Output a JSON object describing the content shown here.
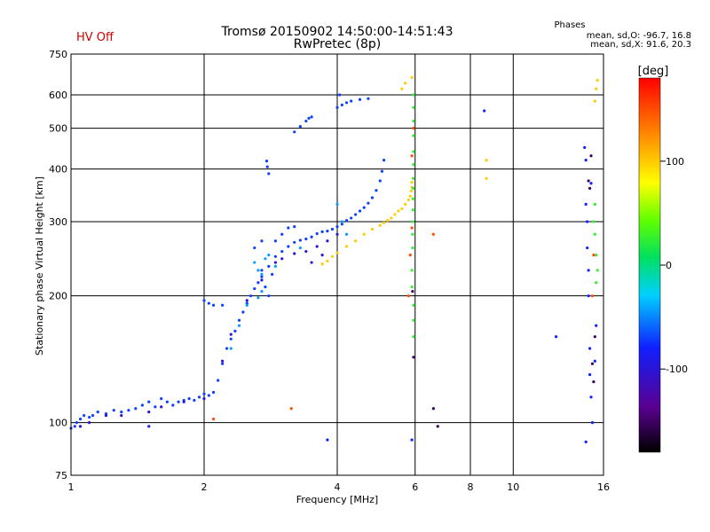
{
  "status_text": "HV Off",
  "status_color": "#cc0000",
  "chart_data": {
    "type": "scatter",
    "title": "Tromsø 20150902 14:50:00-14:51:43",
    "subtitle": "RwPretec (8p)",
    "xlabel": "Frequency [MHz]",
    "ylabel": "Stationary phase Virtual Height [km]",
    "x_scale": "log",
    "y_scale": "log",
    "xlim": [
      1,
      16
    ],
    "ylim": [
      75,
      750
    ],
    "x_ticks": [
      1,
      2,
      4,
      6,
      8,
      10,
      16
    ],
    "y_ticks": [
      75,
      100,
      200,
      300,
      400,
      500,
      600,
      750
    ],
    "grid": true,
    "phase_box": {
      "title": "Phases",
      "line_o": "mean, sd,O: -96.7, 16.8",
      "line_x": "mean, sd,X:  91.6, 20.3"
    },
    "colorbar": {
      "label": "[deg]",
      "range": [
        -180,
        180
      ],
      "ticks": [
        100,
        0,
        -100
      ]
    },
    "series": [
      {
        "phase_deg": -97,
        "points": [
          [
            1.0,
            97
          ],
          [
            1.02,
            98
          ],
          [
            1.03,
            100
          ],
          [
            1.05,
            102
          ],
          [
            1.07,
            104
          ],
          [
            1.1,
            103
          ],
          [
            1.12,
            104
          ],
          [
            1.15,
            106
          ],
          [
            1.2,
            105
          ],
          [
            1.25,
            107
          ],
          [
            1.3,
            106
          ],
          [
            1.35,
            107
          ],
          [
            1.4,
            108
          ],
          [
            1.45,
            110
          ],
          [
            1.5,
            112
          ],
          [
            1.55,
            109
          ],
          [
            1.6,
            114
          ],
          [
            1.65,
            112
          ],
          [
            1.7,
            110
          ],
          [
            1.75,
            112
          ],
          [
            1.8,
            113
          ],
          [
            1.85,
            114
          ],
          [
            1.9,
            113
          ],
          [
            1.95,
            115
          ],
          [
            2.0,
            117
          ],
          [
            2.05,
            116
          ],
          [
            2.1,
            118
          ],
          [
            2.15,
            126
          ],
          [
            2.2,
            138
          ],
          [
            2.25,
            150
          ],
          [
            2.3,
            158
          ],
          [
            2.35,
            165
          ],
          [
            2.4,
            175
          ],
          [
            2.45,
            183
          ],
          [
            2.5,
            192
          ],
          [
            2.55,
            200
          ],
          [
            2.6,
            208
          ],
          [
            2.65,
            215
          ],
          [
            2.7,
            222
          ],
          [
            2.8,
            235
          ],
          [
            2.9,
            248
          ],
          [
            3.0,
            255
          ],
          [
            3.1,
            262
          ],
          [
            3.2,
            268
          ],
          [
            3.3,
            271
          ],
          [
            3.4,
            273
          ],
          [
            3.5,
            276
          ],
          [
            3.6,
            281
          ],
          [
            3.7,
            284
          ],
          [
            3.8,
            285
          ],
          [
            3.9,
            288
          ],
          [
            4.0,
            292
          ],
          [
            4.1,
            296
          ],
          [
            4.2,
            302
          ],
          [
            4.3,
            306
          ],
          [
            4.4,
            312
          ],
          [
            4.5,
            318
          ],
          [
            4.6,
            324
          ],
          [
            4.7,
            332
          ],
          [
            4.8,
            342
          ],
          [
            4.9,
            356
          ],
          [
            5.0,
            375
          ],
          [
            5.05,
            395
          ],
          [
            5.1,
            420
          ],
          [
            2.0,
            195
          ],
          [
            2.05,
            192
          ],
          [
            2.1,
            190
          ],
          [
            2.2,
            190
          ],
          [
            2.8,
            390
          ],
          [
            2.78,
            405
          ],
          [
            2.77,
            418
          ],
          [
            3.2,
            490
          ],
          [
            3.3,
            505
          ],
          [
            3.4,
            520
          ],
          [
            3.45,
            528
          ],
          [
            3.5,
            532
          ],
          [
            4.0,
            560
          ],
          [
            4.1,
            568
          ],
          [
            4.2,
            575
          ],
          [
            4.3,
            580
          ],
          [
            4.5,
            585
          ],
          [
            4.7,
            588
          ],
          [
            4.05,
            600
          ],
          [
            2.7,
            230
          ],
          [
            2.75,
            210
          ],
          [
            2.8,
            200
          ],
          [
            2.85,
            225
          ],
          [
            2.9,
            270
          ],
          [
            3.0,
            280
          ],
          [
            3.1,
            290
          ],
          [
            3.2,
            292
          ],
          [
            2.6,
            260
          ],
          [
            2.7,
            270
          ]
        ]
      },
      {
        "phase_deg": -125,
        "points": [
          [
            1.05,
            98
          ],
          [
            1.1,
            100
          ],
          [
            1.2,
            104
          ],
          [
            1.3,
            104
          ],
          [
            1.5,
            106
          ],
          [
            1.6,
            109
          ],
          [
            1.8,
            112
          ],
          [
            2.0,
            114
          ],
          [
            2.2,
            140
          ],
          [
            2.3,
            162
          ],
          [
            2.5,
            195
          ],
          [
            2.7,
            218
          ],
          [
            2.9,
            240
          ],
          [
            3.0,
            245
          ],
          [
            3.2,
            252
          ],
          [
            3.4,
            255
          ],
          [
            3.6,
            262
          ],
          [
            3.8,
            270
          ],
          [
            4.0,
            280
          ],
          [
            3.5,
            240
          ],
          [
            3.7,
            250
          ]
        ]
      },
      {
        "phase_deg": -60,
        "points": [
          [
            2.6,
            240
          ],
          [
            2.65,
            230
          ],
          [
            2.7,
            225
          ],
          [
            2.75,
            245
          ],
          [
            2.8,
            250
          ],
          [
            2.7,
            205
          ],
          [
            2.65,
            198
          ],
          [
            2.9,
            235
          ],
          [
            2.5,
            190
          ],
          [
            2.4,
            170
          ],
          [
            2.3,
            150
          ],
          [
            4.1,
            300
          ],
          [
            4.2,
            280
          ],
          [
            4.0,
            330
          ],
          [
            3.3,
            260
          ]
        ]
      },
      {
        "phase_deg": 100,
        "points": [
          [
            3.7,
            238
          ],
          [
            3.8,
            242
          ],
          [
            3.9,
            248
          ],
          [
            4.0,
            253
          ],
          [
            4.2,
            262
          ],
          [
            4.4,
            270
          ],
          [
            4.6,
            280
          ],
          [
            4.8,
            288
          ],
          [
            5.0,
            294
          ],
          [
            5.1,
            298
          ],
          [
            5.2,
            302
          ],
          [
            5.3,
            306
          ],
          [
            5.4,
            312
          ],
          [
            5.5,
            318
          ],
          [
            5.6,
            322
          ],
          [
            5.7,
            330
          ],
          [
            5.8,
            338
          ],
          [
            5.85,
            345
          ],
          [
            5.88,
            355
          ],
          [
            5.9,
            362
          ],
          [
            5.9,
            372
          ],
          [
            5.6,
            620
          ],
          [
            5.7,
            640
          ],
          [
            5.9,
            660
          ],
          [
            8.7,
            420
          ],
          [
            8.7,
            380
          ],
          [
            15.3,
            580
          ],
          [
            15.4,
            620
          ],
          [
            15.5,
            650
          ]
        ]
      },
      {
        "phase_deg": 20,
        "points": [
          [
            5.9,
            210
          ],
          [
            5.9,
            230
          ],
          [
            5.92,
            260
          ],
          [
            5.92,
            280
          ],
          [
            5.92,
            300
          ],
          [
            5.93,
            320
          ],
          [
            5.93,
            340
          ],
          [
            5.94,
            360
          ],
          [
            5.94,
            380
          ],
          [
            5.95,
            410
          ],
          [
            5.95,
            440
          ],
          [
            5.95,
            480
          ],
          [
            5.95,
            520
          ],
          [
            5.95,
            560
          ],
          [
            5.95,
            600
          ],
          [
            5.95,
            190
          ],
          [
            5.95,
            175
          ],
          [
            5.95,
            160
          ],
          [
            15.2,
            300
          ],
          [
            15.3,
            330
          ],
          [
            15.3,
            280
          ],
          [
            15.4,
            250
          ],
          [
            15.5,
            230
          ],
          [
            15.4,
            215
          ]
        ]
      },
      {
        "phase_deg": 150,
        "points": [
          [
            5.8,
            200
          ],
          [
            5.85,
            250
          ],
          [
            5.9,
            290
          ],
          [
            5.9,
            430
          ],
          [
            5.95,
            500
          ],
          [
            3.15,
            108
          ],
          [
            2.1,
            102
          ],
          [
            6.6,
            280
          ],
          [
            15.1,
            200
          ],
          [
            15.2,
            250
          ]
        ]
      },
      {
        "phase_deg": -160,
        "points": [
          [
            5.95,
            143
          ],
          [
            5.92,
            205
          ],
          [
            6.75,
            98
          ],
          [
            6.6,
            108
          ],
          [
            14.8,
            375
          ],
          [
            14.9,
            360
          ],
          [
            15.0,
            430
          ],
          [
            15.1,
            138
          ],
          [
            15.2,
            125
          ],
          [
            15.3,
            160
          ]
        ]
      },
      {
        "phase_deg": -110,
        "points": [
          [
            3.8,
            91
          ],
          [
            5.9,
            91
          ],
          [
            8.6,
            550
          ],
          [
            12.5,
            160
          ],
          [
            14.5,
            450
          ],
          [
            14.6,
            420
          ],
          [
            14.6,
            330
          ],
          [
            14.7,
            300
          ],
          [
            14.7,
            260
          ],
          [
            14.8,
            230
          ],
          [
            14.8,
            200
          ],
          [
            14.9,
            150
          ],
          [
            14.9,
            130
          ],
          [
            15.0,
            115
          ],
          [
            15.1,
            100
          ],
          [
            14.6,
            90
          ],
          [
            15.3,
            140
          ],
          [
            15.4,
            170
          ],
          [
            15.0,
            370
          ],
          [
            1.5,
            98
          ]
        ]
      }
    ]
  }
}
